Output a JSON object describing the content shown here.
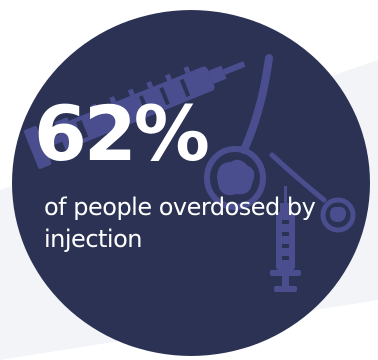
{
  "stat": {
    "value": "62%",
    "caption": "of people overdosed by injection"
  },
  "icons": [
    "syringe-icon",
    "spoon-icon",
    "small-spoon-icon",
    "vertical-syringe-icon"
  ],
  "colors": {
    "circle_fill": "#2b3254",
    "icon_fill": "#4a4e8e",
    "text": "#ffffff",
    "background": "#ffffff",
    "background_band": "#f3f4f8"
  }
}
